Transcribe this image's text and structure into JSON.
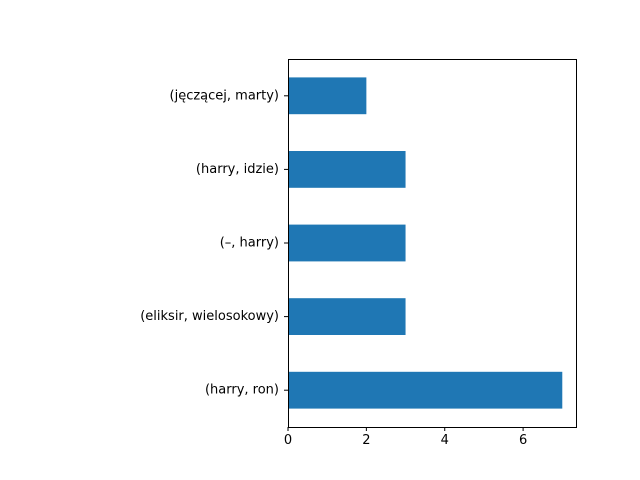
{
  "chart_data": {
    "type": "bar",
    "orientation": "horizontal",
    "categories": [
      "(harry, ron)",
      "(eliksir, wielosokowy)",
      "(–, harry)",
      "(harry, idzie)",
      "(jęczącej, marty)"
    ],
    "values": [
      7,
      3,
      3,
      3,
      2
    ],
    "xlim": [
      0,
      7.35
    ],
    "xticks": [
      0,
      2,
      4,
      6
    ],
    "xtick_labels": [
      "0",
      "2",
      "4",
      "6"
    ],
    "title": "",
    "xlabel": "",
    "ylabel": "",
    "grid": false,
    "bar_color": "#1f77b4"
  }
}
